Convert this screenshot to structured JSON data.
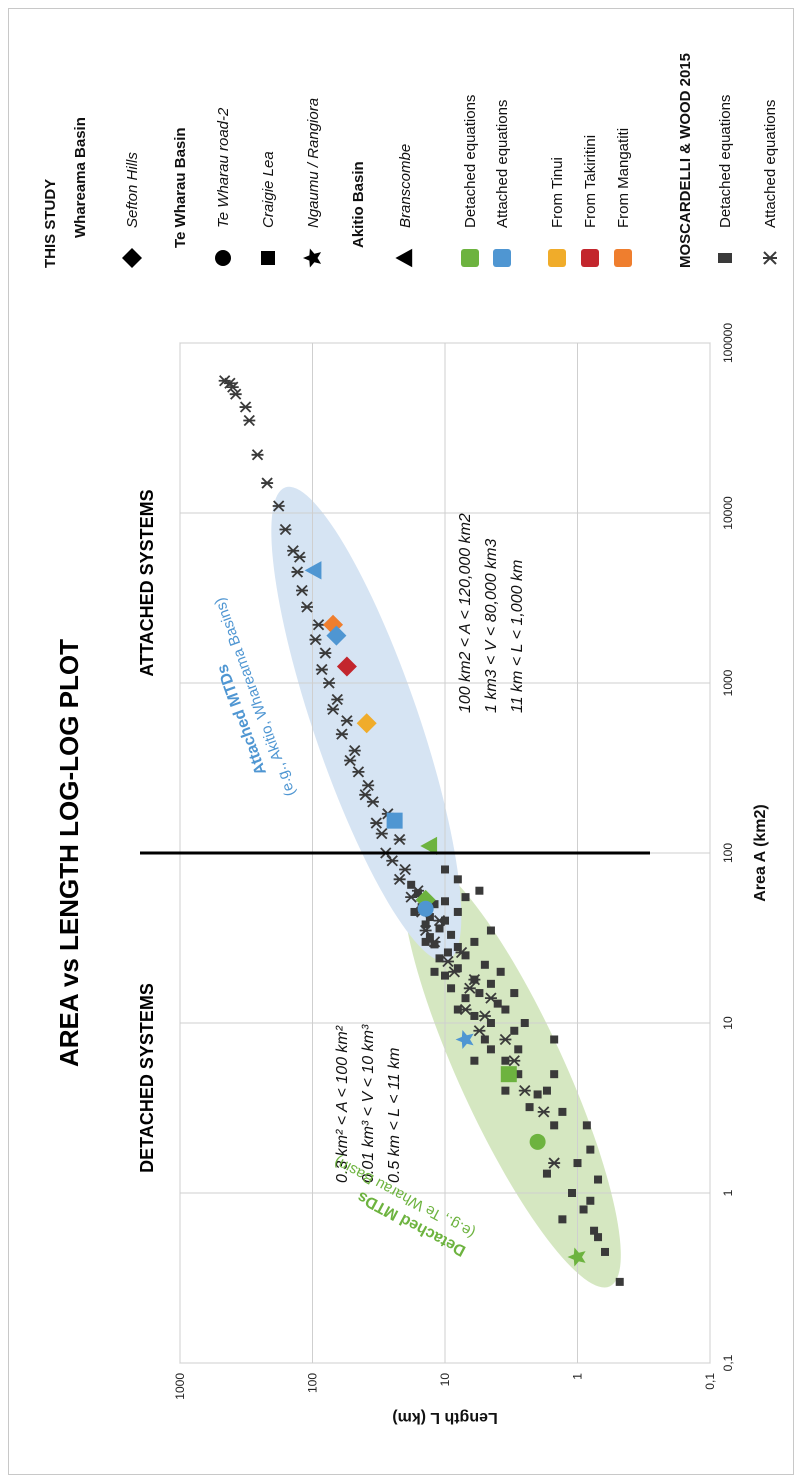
{
  "chart_data": {
    "type": "scatter",
    "title": "AREA vs LENGTH LOG-LOG PLOT",
    "xlabel": "Area A (km2)",
    "ylabel": "Length L (km)",
    "x_scale": "log",
    "y_scale": "log",
    "xlim": [
      0.1,
      100000
    ],
    "ylim": [
      0.1,
      1000
    ],
    "x_ticks": [
      "0,1",
      "1",
      "10",
      "100",
      "1000",
      "10000",
      "100000"
    ],
    "y_ticks": [
      "0,1",
      "1",
      "10",
      "100",
      "1000"
    ],
    "grid": true,
    "legend_position": "right",
    "threshold_area": 100,
    "regions": {
      "detached_label": "DETACHED SYSTEMS",
      "attached_label": "ATTACHED SYSTEMS",
      "detached_ranges": [
        "0.3 km² < A < 100 km²",
        "0.01 km³ < V < 10 km³",
        "0.5 km < L < 11 km"
      ],
      "attached_ranges": [
        "100 km2 < A < 120,000 km2",
        "1 km3 < V < 80,000 km3",
        "11 km < L < 1,000 km"
      ],
      "detached_mtds_title": "Detached MTDs",
      "detached_mtds_note": "(e.g., Te Wharau Basin)",
      "attached_mtds_title": "Attached MTDs",
      "attached_mtds_note": "(e.g., Akitio, Whareama Basins)"
    },
    "legend": {
      "this_study": "THIS STUDY",
      "whareama_basin": "Whareama Basin",
      "sefton_hills": "Sefton Hills",
      "te_wharau_basin": "Te Wharau Basin",
      "te_wharau_road": "Te Wharau road-2",
      "craigie_lea": "Craigie Lea",
      "ngaumu": "Ngaumu / Rangiora",
      "akitio_basin": "Akitio Basin",
      "branscombe": "Branscombe",
      "detached_equations": "Detached equations",
      "attached_equations": "Attached equations",
      "from_tinui": "From Tinui",
      "from_takiritini": "From Takiritini",
      "from_mangatiti": "From Mangatiti",
      "moscardelli": "MOSCARDELLI & WOOD 2015",
      "m_detached": "Detached equations",
      "m_attached": "Attached equations"
    },
    "colors": {
      "green": "#6db33f",
      "blue": "#4f96d2",
      "yellow": "#f0ac2a",
      "red": "#c3262d",
      "orange": "#ef7e2e",
      "dark": "#3a3a3a",
      "green_region": "#d5e7c1",
      "blue_region": "#d6e4f3"
    },
    "study_points": [
      {
        "site": "Sefton Hills",
        "shape": "diamond",
        "equation": "detached",
        "color": "green",
        "x": 53,
        "y": 14
      },
      {
        "site": "Te Wharau road-2",
        "shape": "circle",
        "equation": "detached",
        "color": "green",
        "x": 2,
        "y": 2
      },
      {
        "site": "Te Wharau road-2",
        "shape": "circle",
        "equation": "attached",
        "color": "blue",
        "x": 47,
        "y": 14
      },
      {
        "site": "Craigie Lea",
        "shape": "square",
        "equation": "detached",
        "color": "green",
        "x": 5,
        "y": 3.3
      },
      {
        "site": "Craigie Lea",
        "shape": "square",
        "equation": "attached",
        "color": "blue",
        "x": 155,
        "y": 24
      },
      {
        "site": "Ngaumu / Rangiora",
        "shape": "star",
        "equation": "detached",
        "color": "green",
        "x": 0.42,
        "y": 1
      },
      {
        "site": "Ngaumu / Rangiora",
        "shape": "star",
        "equation": "attached",
        "color": "blue",
        "x": 8,
        "y": 7
      },
      {
        "site": "Branscombe",
        "shape": "triangle",
        "equation": "detached",
        "color": "green",
        "x": 110,
        "y": 13
      },
      {
        "site": "Branscombe",
        "shape": "triangle",
        "equation": "attached",
        "color": "blue",
        "x": 4600,
        "y": 97
      },
      {
        "site": "Sefton Hills",
        "shape": "diamond",
        "equation": "from_tinui",
        "color": "yellow",
        "x": 580,
        "y": 39
      },
      {
        "site": "Sefton Hills",
        "shape": "diamond",
        "equation": "from_takiritini",
        "color": "red",
        "x": 1250,
        "y": 55
      },
      {
        "site": "Sefton Hills",
        "shape": "diamond",
        "equation": "from_mangatiti",
        "color": "orange",
        "x": 2200,
        "y": 70
      },
      {
        "site": "Sefton Hills",
        "shape": "diamond",
        "equation": "attached",
        "color": "blue",
        "x": 1900,
        "y": 66
      }
    ],
    "moscardelli_detached": [
      [
        0.3,
        0.48
      ],
      [
        0.45,
        0.62
      ],
      [
        0.55,
        0.7
      ],
      [
        0.6,
        0.75
      ],
      [
        0.7,
        1.3
      ],
      [
        0.8,
        0.9
      ],
      [
        0.9,
        0.8
      ],
      [
        1.0,
        1.1
      ],
      [
        1.2,
        0.7
      ],
      [
        1.3,
        1.7
      ],
      [
        1.5,
        1.0
      ],
      [
        1.8,
        0.8
      ],
      [
        2.5,
        0.85
      ],
      [
        2.5,
        1.5
      ],
      [
        3.0,
        1.3
      ],
      [
        3.2,
        2.3
      ],
      [
        3.8,
        2.0
      ],
      [
        4.0,
        1.7
      ],
      [
        5.0,
        2.8
      ],
      [
        5.0,
        1.5
      ],
      [
        6.0,
        3.5
      ],
      [
        7.0,
        2.8
      ],
      [
        8.0,
        1.5
      ],
      [
        9.0,
        3.0
      ],
      [
        10,
        2.5
      ],
      [
        10,
        4.5
      ],
      [
        12,
        3.5
      ],
      [
        13,
        4.0
      ],
      [
        15,
        5.5
      ],
      [
        15,
        3.0
      ],
      [
        17,
        4.5
      ],
      [
        18,
        6.0
      ],
      [
        20,
        3.8
      ],
      [
        22,
        5.0
      ],
      [
        25,
        7.0
      ],
      [
        28,
        8.0
      ],
      [
        30,
        6.0
      ],
      [
        33,
        9.0
      ],
      [
        35,
        4.5
      ],
      [
        40,
        10
      ],
      [
        45,
        8.0
      ],
      [
        50,
        12
      ],
      [
        55,
        7.0
      ],
      [
        60,
        5.5
      ],
      [
        70,
        8.0
      ],
      [
        80,
        10
      ],
      [
        6,
        6
      ],
      [
        8,
        5
      ],
      [
        11,
        6
      ],
      [
        14,
        7
      ],
      [
        16,
        9
      ],
      [
        19,
        10
      ],
      [
        21,
        8
      ],
      [
        24,
        11
      ],
      [
        26,
        9.5
      ],
      [
        29,
        12
      ],
      [
        32,
        13
      ],
      [
        36,
        11
      ],
      [
        38,
        14
      ],
      [
        42,
        13
      ],
      [
        48,
        15
      ],
      [
        52,
        10
      ],
      [
        58,
        16
      ],
      [
        4,
        3.5
      ],
      [
        7,
        4.5
      ],
      [
        12,
        8
      ],
      [
        20,
        12
      ],
      [
        30,
        14
      ],
      [
        45,
        17
      ],
      [
        65,
        18
      ]
    ],
    "moscardelli_attached": [
      [
        1.5,
        1.5
      ],
      [
        3,
        1.8
      ],
      [
        4,
        2.5
      ],
      [
        6,
        3.0
      ],
      [
        8,
        3.5
      ],
      [
        9,
        5.5
      ],
      [
        11,
        5.0
      ],
      [
        12,
        7.0
      ],
      [
        14,
        4.5
      ],
      [
        16,
        6.5
      ],
      [
        18,
        6.0
      ],
      [
        20,
        8.5
      ],
      [
        23,
        9.5
      ],
      [
        26,
        7.5
      ],
      [
        30,
        12
      ],
      [
        35,
        14
      ],
      [
        40,
        11
      ],
      [
        45,
        15
      ],
      [
        55,
        18
      ],
      [
        60,
        16
      ],
      [
        70,
        22
      ],
      [
        80,
        20
      ],
      [
        90,
        25
      ],
      [
        100,
        28
      ],
      [
        120,
        22
      ],
      [
        130,
        30
      ],
      [
        150,
        33
      ],
      [
        170,
        27
      ],
      [
        200,
        35
      ],
      [
        220,
        40
      ],
      [
        250,
        38
      ],
      [
        300,
        45
      ],
      [
        350,
        52
      ],
      [
        400,
        48
      ],
      [
        500,
        60
      ],
      [
        600,
        55
      ],
      [
        700,
        70
      ],
      [
        800,
        65
      ],
      [
        1000,
        75
      ],
      [
        1200,
        85
      ],
      [
        1500,
        80
      ],
      [
        1800,
        95
      ],
      [
        2200,
        90
      ],
      [
        2800,
        110
      ],
      [
        3500,
        120
      ],
      [
        4500,
        130
      ],
      [
        5500,
        125
      ],
      [
        6000,
        140
      ],
      [
        8000,
        160
      ],
      [
        11000,
        180
      ],
      [
        15000,
        220
      ],
      [
        22000,
        260
      ],
      [
        35000,
        300
      ],
      [
        42000,
        320
      ],
      [
        50000,
        380
      ],
      [
        58000,
        420
      ],
      [
        60000,
        460
      ],
      [
        55000,
        400
      ]
    ]
  }
}
